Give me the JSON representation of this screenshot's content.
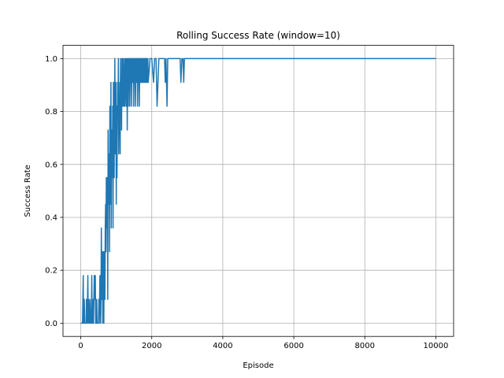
{
  "chart_data": {
    "type": "line",
    "title": "Rolling Success Rate (window=10)",
    "xlabel": "Episode",
    "ylabel": "Success Rate",
    "xlim": [
      -500,
      10500
    ],
    "ylim": [
      -0.05,
      1.05
    ],
    "xticks": [
      0,
      2000,
      4000,
      6000,
      8000,
      10000
    ],
    "xtick_labels": [
      "0",
      "2000",
      "4000",
      "6000",
      "8000",
      "10000"
    ],
    "yticks": [
      0.0,
      0.2,
      0.4,
      0.6,
      0.8,
      1.0
    ],
    "ytick_labels": [
      "0.0",
      "0.2",
      "0.4",
      "0.6",
      "0.8",
      "1.0"
    ],
    "grid": true,
    "legend": "none",
    "series": [
      {
        "color": "#1f77b4",
        "x": [
          0,
          50,
          70,
          80,
          90,
          100,
          110,
          130,
          150,
          160,
          180,
          200,
          210,
          220,
          240,
          250,
          260,
          280,
          300,
          310,
          320,
          340,
          350,
          360,
          380,
          400,
          410,
          420,
          440,
          450,
          460,
          480,
          500,
          510,
          520,
          540,
          550,
          560,
          570,
          580,
          590,
          600,
          610,
          620,
          630,
          640,
          650,
          660,
          670,
          680,
          690,
          700,
          710,
          720,
          730,
          740,
          750,
          760,
          770,
          780,
          790,
          800,
          810,
          820,
          830,
          840,
          850,
          860,
          870,
          880,
          890,
          900,
          910,
          920,
          930,
          940,
          950,
          960,
          970,
          980,
          990,
          1000,
          1010,
          1020,
          1030,
          1040,
          1050,
          1060,
          1070,
          1080,
          1090,
          1100,
          1110,
          1120,
          1130,
          1140,
          1150,
          1160,
          1170,
          1180,
          1190,
          1200,
          1210,
          1220,
          1230,
          1240,
          1250,
          1260,
          1270,
          1280,
          1290,
          1300,
          1310,
          1320,
          1330,
          1340,
          1350,
          1360,
          1370,
          1380,
          1390,
          1400,
          1410,
          1420,
          1430,
          1440,
          1450,
          1460,
          1470,
          1480,
          1490,
          1500,
          1510,
          1520,
          1530,
          1540,
          1550,
          1560,
          1570,
          1580,
          1590,
          1600,
          1610,
          1620,
          1630,
          1640,
          1650,
          1660,
          1670,
          1680,
          1690,
          1700,
          1710,
          1720,
          1730,
          1740,
          1750,
          1760,
          1770,
          1780,
          1790,
          1800,
          1810,
          1820,
          1830,
          1840,
          1850,
          1860,
          1870,
          1880,
          1890,
          1900,
          1950,
          2000,
          2050,
          2080,
          2100,
          2120,
          2150,
          2200,
          2300,
          2360,
          2380,
          2400,
          2430,
          2450,
          2500,
          2800,
          2820,
          2850,
          2880,
          2900,
          2920,
          2950,
          10000
        ],
        "y": [
          0,
          0,
          0.18,
          0,
          0,
          0.09,
          0,
          0,
          0,
          0.09,
          0,
          0.18,
          0,
          0.09,
          0,
          0,
          0.09,
          0,
          0,
          0.18,
          0,
          0,
          0.09,
          0,
          0.18,
          0.09,
          0.18,
          0,
          0,
          0.09,
          0,
          0,
          0,
          0.09,
          0,
          0.18,
          0.09,
          0,
          0.09,
          0.36,
          0.18,
          0.09,
          0.27,
          0,
          0.18,
          0.27,
          0,
          0.27,
          0.18,
          0.09,
          0.36,
          0.45,
          0.27,
          0.55,
          0.36,
          0.55,
          0.45,
          0.09,
          0.73,
          0.45,
          0.55,
          0.64,
          0.27,
          0.82,
          0.55,
          0.45,
          0.91,
          0.36,
          0.73,
          0.64,
          0.55,
          0.82,
          0.36,
          0.91,
          0.73,
          0.55,
          0.82,
          1.0,
          0.64,
          0.73,
          0.91,
          0.45,
          0.82,
          0.55,
          0.73,
          0.91,
          0.82,
          1.0,
          0.64,
          0.82,
          0.73,
          0.91,
          0.64,
          1.0,
          0.82,
          0.91,
          0.73,
          1.0,
          0.91,
          0.82,
          1.0,
          0.91,
          0.82,
          0.91,
          1.0,
          0.82,
          0.91,
          1.0,
          0.91,
          0.82,
          1.0,
          0.91,
          0.73,
          1.0,
          0.91,
          0.82,
          1.0,
          0.91,
          1.0,
          0.82,
          0.91,
          1.0,
          0.91,
          1.0,
          0.82,
          1.0,
          0.91,
          1.0,
          0.91,
          1.0,
          0.82,
          1.0,
          0.91,
          1.0,
          0.91,
          0.82,
          1.0,
          0.91,
          1.0,
          0.91,
          1.0,
          0.82,
          0.91,
          1.0,
          0.91,
          1.0,
          0.82,
          1.0,
          0.91,
          1.0,
          0.91,
          1.0,
          0.91,
          1.0,
          0.91,
          1.0,
          0.91,
          1.0,
          0.91,
          1.0,
          1.0,
          0.91,
          1.0,
          0.91,
          1.0,
          0.91,
          1.0,
          1.0,
          0.91,
          1.0,
          1.0,
          0.91,
          1.0,
          1.0,
          0.91,
          1.0,
          1.0,
          1.0,
          0.82,
          1.0,
          1.0,
          1.0,
          0.91,
          1.0,
          0.82,
          1.0,
          1.0,
          1.0,
          0.91,
          1.0,
          1.0,
          0.91,
          1.0,
          1.0,
          1.0
        ]
      }
    ]
  }
}
